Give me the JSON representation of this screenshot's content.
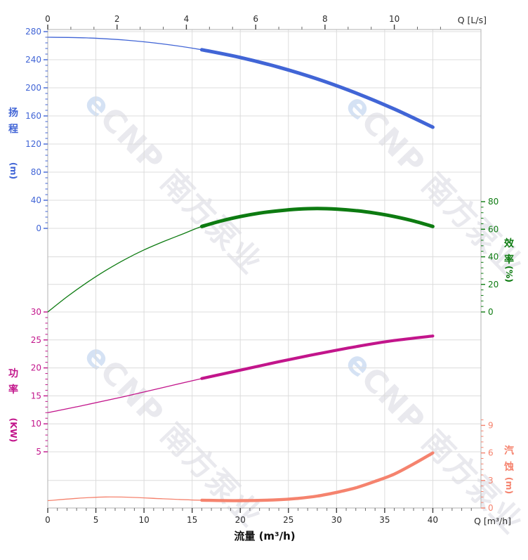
{
  "chart_data": {
    "type": "line",
    "title": "",
    "brand_watermark": {
      "logo_char": "e",
      "text": "CNP 南方泵业"
    },
    "x_axis_bottom": {
      "label": "流量 (m³/h)",
      "unit_label": "Q [m³/h]",
      "ticks": [
        0,
        5,
        10,
        15,
        20,
        25,
        30,
        35,
        40
      ],
      "minor_step": 1,
      "range": [
        0,
        45
      ],
      "color": "#2b2b2b"
    },
    "x_axis_top": {
      "unit_label": "Q [L/s]",
      "ticks": [
        0,
        2,
        4,
        6,
        8,
        10
      ],
      "range": [
        0,
        12.5
      ],
      "color": "#2b2b2b"
    },
    "y_axes": [
      {
        "id": "head",
        "title": "扬程",
        "unit": "(m)",
        "side": "left",
        "color": "#4165d6",
        "ticks": [
          280,
          240,
          200,
          160,
          120,
          80,
          40,
          0
        ],
        "minor_step": 8,
        "range": [
          0,
          283
        ]
      },
      {
        "id": "efficiency",
        "title": "效率",
        "unit": "(%)",
        "side": "right",
        "color": "#0d7b11",
        "ticks": [
          80,
          60,
          40,
          20,
          0
        ],
        "minor_step": 4,
        "range": [
          0,
          92
        ]
      },
      {
        "id": "power",
        "title": "功率",
        "unit": "(KW)",
        "side": "left",
        "color": "#c2158b",
        "ticks": [
          30,
          25,
          20,
          15,
          10,
          5
        ],
        "minor_step": 1,
        "range": [
          5,
          30
        ]
      },
      {
        "id": "npsh",
        "title": "汽蚀",
        "unit": "(m)",
        "side": "right",
        "color": "#f5836e",
        "ticks": [
          9,
          6,
          3,
          0
        ],
        "minor_step": 0.6,
        "range": [
          0,
          9.6
        ]
      }
    ],
    "series": [
      {
        "name": "head-curve",
        "axis": "head",
        "color": "#4165d6",
        "bold_from": 16,
        "points": [
          [
            0,
            272
          ],
          [
            4,
            271.1
          ],
          [
            8,
            268
          ],
          [
            12,
            262.4
          ],
          [
            16,
            254.2
          ],
          [
            20,
            243.2
          ],
          [
            24,
            229.3
          ],
          [
            28,
            212.6
          ],
          [
            32,
            192.7
          ],
          [
            36,
            169.8
          ],
          [
            40,
            144
          ]
        ]
      },
      {
        "name": "efficiency-curve",
        "axis": "efficiency",
        "color": "#0d7b11",
        "bold_from": 16,
        "points": [
          [
            0,
            0
          ],
          [
            2,
            11
          ],
          [
            4,
            21
          ],
          [
            6,
            30
          ],
          [
            8,
            38
          ],
          [
            10,
            45
          ],
          [
            12,
            51
          ],
          [
            14,
            56.5
          ],
          [
            16,
            62
          ],
          [
            18,
            66
          ],
          [
            20,
            69.2
          ],
          [
            22,
            71.7
          ],
          [
            24,
            73.4
          ],
          [
            26,
            74.6
          ],
          [
            28,
            75
          ],
          [
            30,
            74.6
          ],
          [
            32,
            73.5
          ],
          [
            34,
            71.7
          ],
          [
            36,
            69.2
          ],
          [
            38,
            66
          ],
          [
            40,
            62
          ]
        ]
      },
      {
        "name": "power-curve",
        "axis": "power",
        "color": "#c2158b",
        "bold_from": 16,
        "points": [
          [
            0,
            12
          ],
          [
            4,
            13.4
          ],
          [
            8,
            14.9
          ],
          [
            12,
            16.5
          ],
          [
            16,
            18.1
          ],
          [
            20,
            19.6
          ],
          [
            24,
            21.1
          ],
          [
            28,
            22.5
          ],
          [
            32,
            23.8
          ],
          [
            36,
            24.9
          ],
          [
            40,
            25.7
          ]
        ]
      },
      {
        "name": "npsh-curve",
        "axis": "npsh",
        "color": "#f5836e",
        "bold_from": 16,
        "points": [
          [
            0,
            0.8
          ],
          [
            3,
            1.05
          ],
          [
            6,
            1.2
          ],
          [
            9,
            1.15
          ],
          [
            12,
            1.0
          ],
          [
            16,
            0.85
          ],
          [
            20,
            0.8
          ],
          [
            24,
            0.9
          ],
          [
            26,
            1.05
          ],
          [
            28,
            1.3
          ],
          [
            30,
            1.7
          ],
          [
            32,
            2.2
          ],
          [
            34,
            2.9
          ],
          [
            36,
            3.7
          ],
          [
            38,
            4.8
          ],
          [
            40,
            6.0
          ]
        ]
      }
    ],
    "grid": "on",
    "border_color": "#bdbdbd",
    "grid_color": "#dcdcdc"
  }
}
